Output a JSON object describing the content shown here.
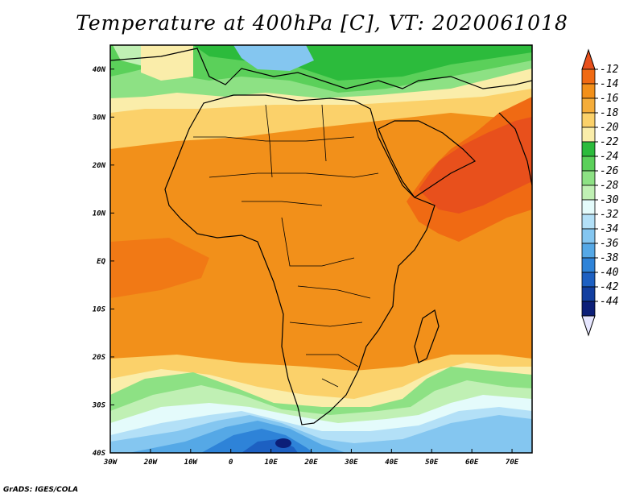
{
  "title": "Temperature at 400hPa [C], VT: 2020061018",
  "credit": "GrADS: IGES/COLA",
  "map": {
    "variable": "Temperature",
    "level_hpa": 400,
    "units": "C",
    "valid_time": "2020061018",
    "region": "Africa and surrounding oceans",
    "lon_range": [
      -30,
      75
    ],
    "lat_range": [
      -40,
      45
    ],
    "lon_ticks": [
      "30W",
      "20W",
      "10W",
      "0",
      "10E",
      "20E",
      "30E",
      "40E",
      "50E",
      "60E",
      "70E"
    ],
    "lat_ticks": [
      "40N",
      "30N",
      "20N",
      "10N",
      "EQ",
      "10S",
      "20S",
      "30S",
      "40S"
    ]
  },
  "colorbar": {
    "levels": [
      "-12",
      "-14",
      "-16",
      "-18",
      "-20",
      "-22",
      "-24",
      "-26",
      "-28",
      "-30",
      "-32",
      "-34",
      "-36",
      "-38",
      "-40",
      "-42",
      "-44"
    ],
    "colors": [
      "#e8501c",
      "#f06a13",
      "#f2901a",
      "#f5ad3a",
      "#fbd16a",
      "#faedaa",
      "#2cbb3c",
      "#5bd05a",
      "#8de184",
      "#c0f0b4",
      "#e4fbfb",
      "#b3e0f7",
      "#84c6f0",
      "#55a8e6",
      "#2e83d8",
      "#1d60c2",
      "#123fa0",
      "#0c1f78",
      "#e6e6ff"
    ]
  }
}
